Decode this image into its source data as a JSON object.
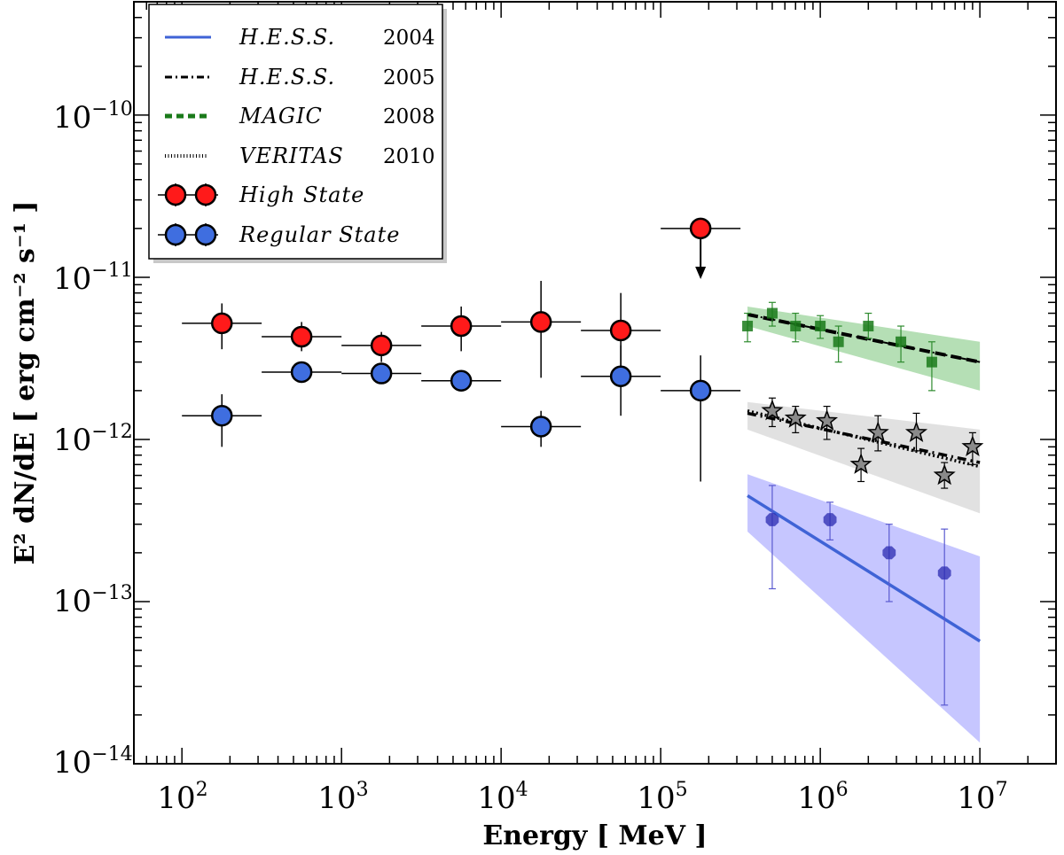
{
  "chart_data": {
    "type": "scatter",
    "title": "",
    "xlabel": "Energy [ MeV ]",
    "ylabel": "E² dN/dE [ erg cm⁻² s⁻¹ ]",
    "xscale": "log",
    "yscale": "log",
    "xlim": [
      50,
      30000000
    ],
    "ylim": [
      1e-14,
      5e-10
    ],
    "x_tick_labels": [
      {
        "base": "10",
        "exp": "2",
        "value": 100
      },
      {
        "base": "10",
        "exp": "3",
        "value": 1000
      },
      {
        "base": "10",
        "exp": "4",
        "value": 10000
      },
      {
        "base": "10",
        "exp": "5",
        "value": 100000
      },
      {
        "base": "10",
        "exp": "6",
        "value": 1000000
      },
      {
        "base": "10",
        "exp": "7",
        "value": 10000000
      }
    ],
    "y_tick_labels": [
      {
        "base": "10",
        "exp": "−14",
        "value": 1e-14
      },
      {
        "base": "10",
        "exp": "−13",
        "value": 1e-13
      },
      {
        "base": "10",
        "exp": "−12",
        "value": 1e-12
      },
      {
        "base": "10",
        "exp": "−11",
        "value": 1e-11
      },
      {
        "base": "10",
        "exp": "−10",
        "value": 1e-10
      }
    ],
    "legend": {
      "placement": "top-left",
      "entries": [
        {
          "label": "H.E.S.S.",
          "year": "2004",
          "style": "solid",
          "color": "#3f63d6"
        },
        {
          "label": "H.E.S.S.",
          "year": "2005",
          "style": "dashdot",
          "color": "#000000"
        },
        {
          "label": "MAGIC",
          "year": "2008",
          "style": "dashed",
          "color": "#1a7a1a"
        },
        {
          "label": "VERITAS",
          "year": "2010",
          "style": "dotted",
          "color": "#000000"
        },
        {
          "label": "High State",
          "year": "",
          "style": "marker",
          "color": "#ff1a1a"
        },
        {
          "label": "Regular State",
          "year": "",
          "style": "marker",
          "color": "#3f6ee0"
        }
      ]
    },
    "series": [
      {
        "name": "High State",
        "kind": "fermi",
        "color": "#ff1a1a",
        "points": [
          {
            "x": 178,
            "y": 5.2e-12,
            "xlo": 100,
            "xhi": 316,
            "ylo": 3.6e-12,
            "yhi": 6.9e-12
          },
          {
            "x": 562,
            "y": 4.3e-12,
            "xlo": 316,
            "xhi": 1000,
            "ylo": 3.5e-12,
            "yhi": 5.3e-12
          },
          {
            "x": 1778,
            "y": 3.8e-12,
            "xlo": 1000,
            "xhi": 3162,
            "ylo": 3e-12,
            "yhi": 4.6e-12
          },
          {
            "x": 5623,
            "y": 5e-12,
            "xlo": 3162,
            "xhi": 10000,
            "ylo": 3.5e-12,
            "yhi": 6.6e-12
          },
          {
            "x": 17783,
            "y": 5.3e-12,
            "xlo": 10000,
            "xhi": 31623,
            "ylo": 2.4e-12,
            "yhi": 9.5e-12
          },
          {
            "x": 56234,
            "y": 4.7e-12,
            "xlo": 31623,
            "xhi": 100000,
            "ylo": 2.5e-12,
            "yhi": 8e-12
          }
        ],
        "upper_limit": {
          "x": 177828,
          "y": 2e-11,
          "xlo": 100000,
          "xhi": 316228,
          "arrow_to": 1e-11
        }
      },
      {
        "name": "Regular State",
        "kind": "fermi",
        "color": "#3f6ee0",
        "points": [
          {
            "x": 178,
            "y": 1.4e-12,
            "xlo": 100,
            "xhi": 316,
            "ylo": 9e-13,
            "yhi": 1.9e-12
          },
          {
            "x": 562,
            "y": 2.6e-12,
            "xlo": 316,
            "xhi": 1000,
            "ylo": 2.3e-12,
            "yhi": 2.9e-12
          },
          {
            "x": 1778,
            "y": 2.55e-12,
            "xlo": 1000,
            "xhi": 3162,
            "ylo": 2.2e-12,
            "yhi": 2.9e-12
          },
          {
            "x": 5623,
            "y": 2.3e-12,
            "xlo": 3162,
            "xhi": 10000,
            "ylo": 2.1e-12,
            "yhi": 2.5e-12
          },
          {
            "x": 17783,
            "y": 1.2e-12,
            "xlo": 10000,
            "xhi": 31623,
            "ylo": 9e-13,
            "yhi": 1.5e-12
          },
          {
            "x": 56234,
            "y": 2.45e-12,
            "xlo": 31623,
            "xhi": 100000,
            "ylo": 1.4e-12,
            "yhi": 3.8e-12
          },
          {
            "x": 177828,
            "y": 2e-12,
            "xlo": 100000,
            "xhi": 316228,
            "ylo": 5.5e-13,
            "yhi": 3.3e-12
          }
        ]
      },
      {
        "name": "MAGIC 2008",
        "kind": "tev",
        "marker": "square",
        "color": "#1a7a1a",
        "band_color": "#5cb85c",
        "fit": {
          "x0": 350000,
          "y0": 5.9e-12,
          "x1": 10000000,
          "y1": 3e-12,
          "style": "dashed"
        },
        "band": {
          "upper": [
            [
              350000,
              6.6e-12
            ],
            [
              10000000,
              4e-12
            ]
          ],
          "lower": [
            [
              350000,
              5e-12
            ],
            [
              10000000,
              2e-12
            ]
          ]
        },
        "points": [
          {
            "x": 350000,
            "y": 5e-12,
            "ylo": 4e-12,
            "yhi": 6e-12
          },
          {
            "x": 500000,
            "y": 6e-12,
            "ylo": 5e-12,
            "yhi": 7e-12
          },
          {
            "x": 700000,
            "y": 5e-12,
            "ylo": 4e-12,
            "yhi": 6e-12
          },
          {
            "x": 1000000,
            "y": 5e-12,
            "ylo": 4.2e-12,
            "yhi": 5.8e-12
          },
          {
            "x": 1300000,
            "y": 4e-12,
            "ylo": 3e-12,
            "yhi": 5e-12
          },
          {
            "x": 2000000,
            "y": 5e-12,
            "ylo": 4.2e-12,
            "yhi": 6e-12
          },
          {
            "x": 3200000,
            "y": 4e-12,
            "ylo": 3e-12,
            "yhi": 5e-12
          },
          {
            "x": 5000000,
            "y": 3e-12,
            "ylo": 2e-12,
            "yhi": 4e-12
          }
        ]
      },
      {
        "name": "H.E.S.S. 2005",
        "kind": "tev",
        "marker": "star",
        "color": "#8a8a8a",
        "band_color": "#bdbdbd",
        "fit": {
          "x0": 350000,
          "y0": 1.45e-12,
          "x1": 10000000,
          "y1": 7.2e-13,
          "style": "dashdot"
        },
        "fit2": {
          "x0": 350000,
          "y0": 1.5e-12,
          "x1": 10000000,
          "y1": 6.8e-13,
          "style": "dotted"
        },
        "band": {
          "upper": [
            [
              350000,
              1.7e-12
            ],
            [
              10000000,
              1.15e-12
            ]
          ],
          "lower": [
            [
              350000,
              1.15e-12
            ],
            [
              10000000,
              3.5e-13
            ]
          ]
        },
        "points": [
          {
            "x": 500000,
            "y": 1.5e-12,
            "ylo": 1.2e-12,
            "yhi": 1.8e-12
          },
          {
            "x": 700000,
            "y": 1.35e-12,
            "ylo": 1.1e-12,
            "yhi": 1.6e-12
          },
          {
            "x": 1100000,
            "y": 1.3e-12,
            "ylo": 1e-12,
            "yhi": 1.6e-12
          },
          {
            "x": 1800000,
            "y": 7e-13,
            "ylo": 5.5e-13,
            "yhi": 8.8e-13
          },
          {
            "x": 2300000,
            "y": 1.1e-12,
            "ylo": 8.5e-13,
            "yhi": 1.4e-12
          },
          {
            "x": 4000000,
            "y": 1.1e-12,
            "ylo": 8.5e-13,
            "yhi": 1.45e-12
          },
          {
            "x": 6000000,
            "y": 6e-13,
            "ylo": 5e-13,
            "yhi": 7.2e-13
          },
          {
            "x": 9000000,
            "y": 9e-13,
            "ylo": 7e-13,
            "yhi": 1.1e-12
          }
        ]
      },
      {
        "name": "H.E.S.S. 2004",
        "kind": "tev",
        "marker": "octagon",
        "color": "#2a2ab0",
        "band_color": "#8080ff",
        "fit": {
          "x0": 350000,
          "y0": 4.5e-13,
          "x1": 10000000,
          "y1": 5.7e-14,
          "style": "solid",
          "color": "#3f63d6"
        },
        "band": {
          "upper": [
            [
              350000,
              6.1e-13
            ],
            [
              10000000,
              1.9e-13
            ]
          ],
          "lower": [
            [
              350000,
              2.7e-13
            ],
            [
              10000000,
              1.35e-14
            ]
          ]
        },
        "points": [
          {
            "x": 500000,
            "y": 3.2e-13,
            "ylo": 1.2e-13,
            "yhi": 5.2e-13
          },
          {
            "x": 1150000,
            "y": 3.2e-13,
            "ylo": 2.4e-13,
            "yhi": 4.1e-13
          },
          {
            "x": 2700000,
            "y": 2e-13,
            "ylo": 1e-13,
            "yhi": 3e-13
          },
          {
            "x": 6000000,
            "y": 1.5e-13,
            "ylo": 2.3e-14,
            "yhi": 2.8e-13
          }
        ]
      }
    ]
  }
}
